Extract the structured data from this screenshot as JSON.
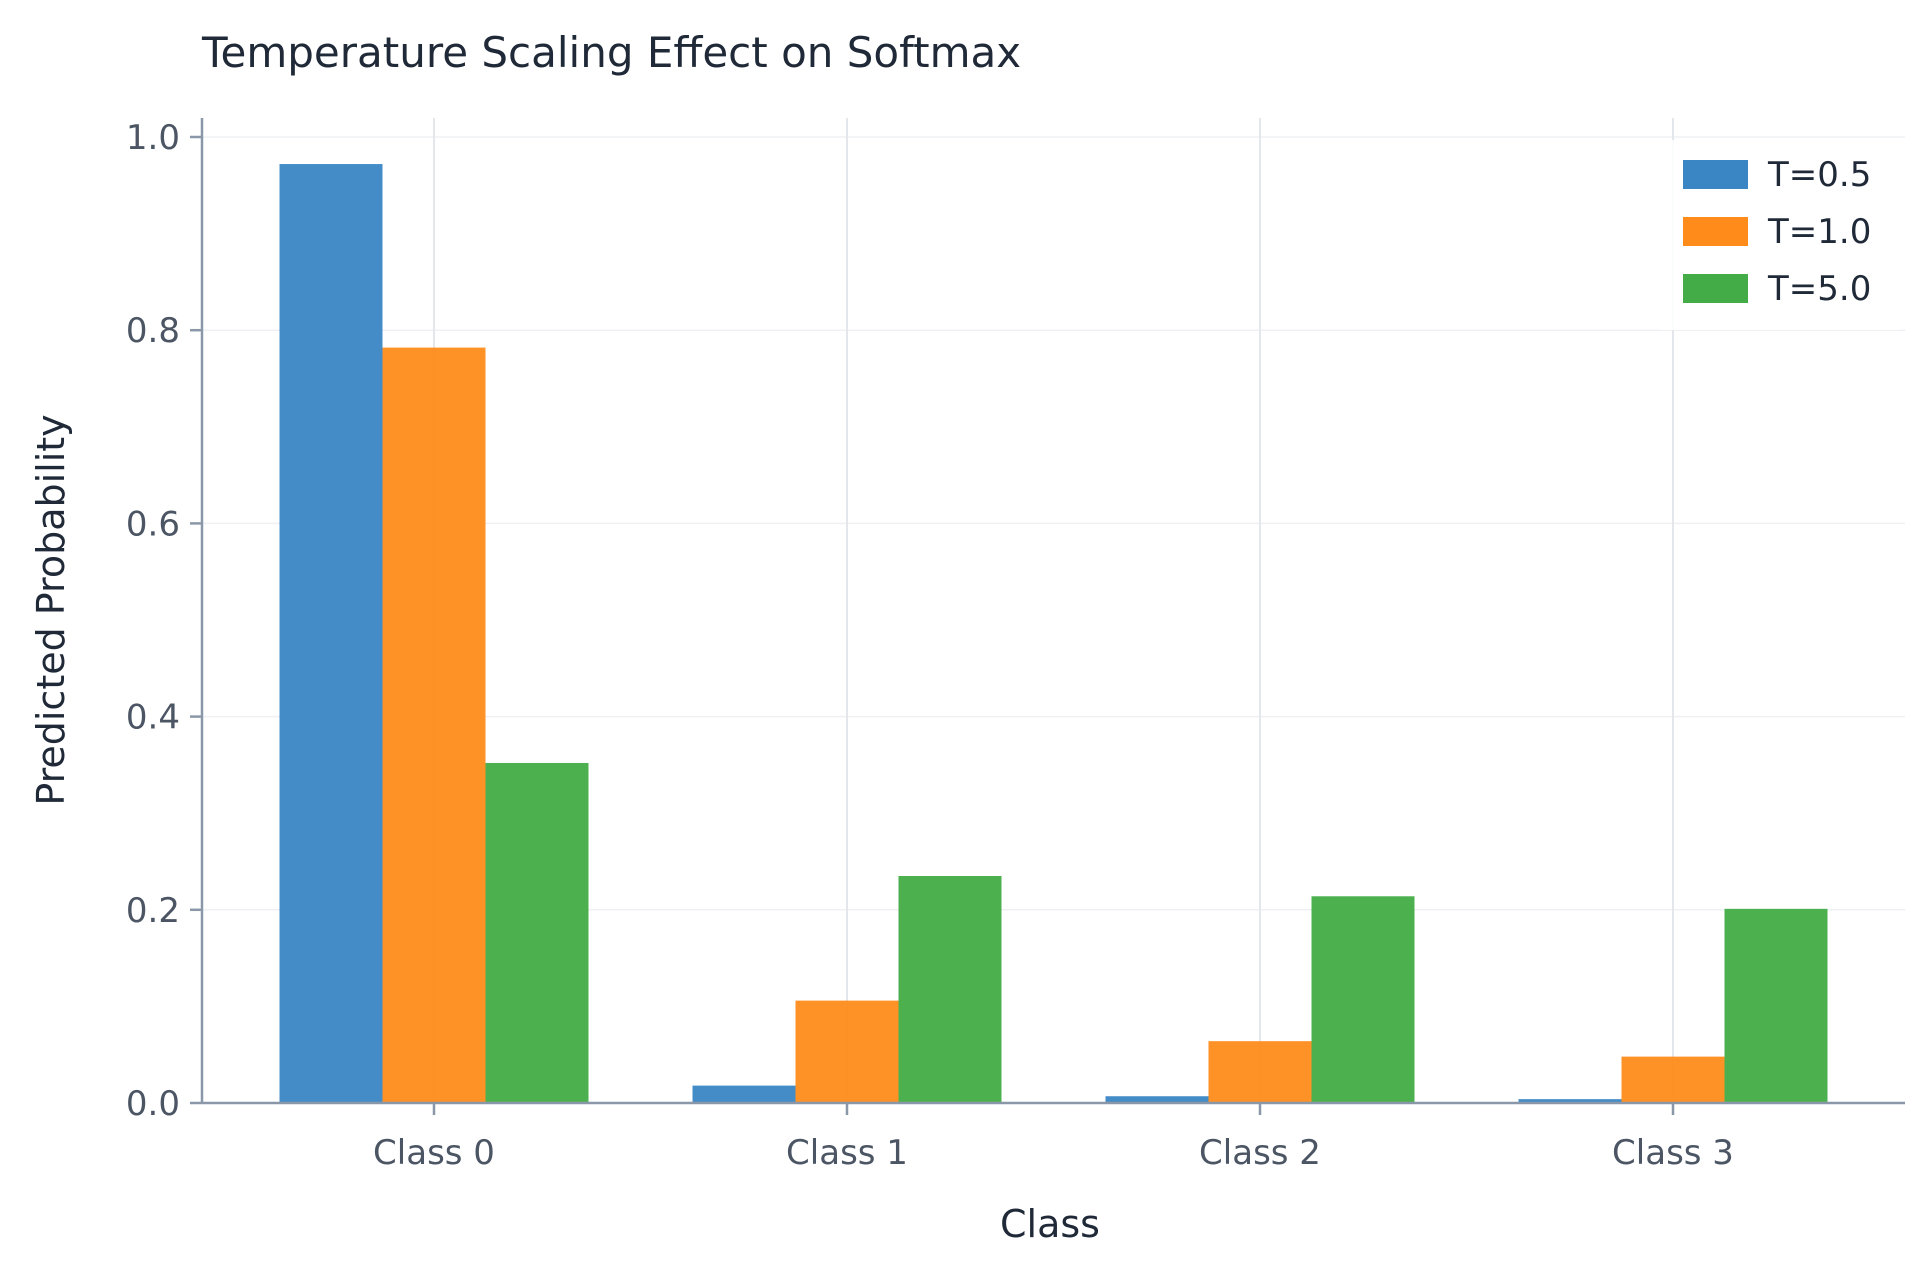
{
  "chart_data": {
    "type": "bar",
    "title": "Temperature Scaling Effect on Softmax",
    "xlabel": "Class",
    "ylabel": "Predicted Probability",
    "categories": [
      "Class 0",
      "Class 1",
      "Class 2",
      "Class 3"
    ],
    "series": [
      {
        "name": "T=0.5",
        "color": "#3a86c4",
        "values": [
          0.972,
          0.018,
          0.007,
          0.004
        ]
      },
      {
        "name": "T=1.0",
        "color": "#ff8c1a",
        "values": [
          0.782,
          0.106,
          0.064,
          0.048
        ]
      },
      {
        "name": "T=5.0",
        "color": "#43ac46",
        "values": [
          0.352,
          0.235,
          0.214,
          0.201
        ]
      }
    ],
    "ylim": [
      0,
      1.0
    ],
    "yticks": [
      "0.0",
      "0.2",
      "0.4",
      "0.6",
      "0.8",
      "1.0"
    ],
    "grid": true,
    "legend_position": "top-right"
  }
}
